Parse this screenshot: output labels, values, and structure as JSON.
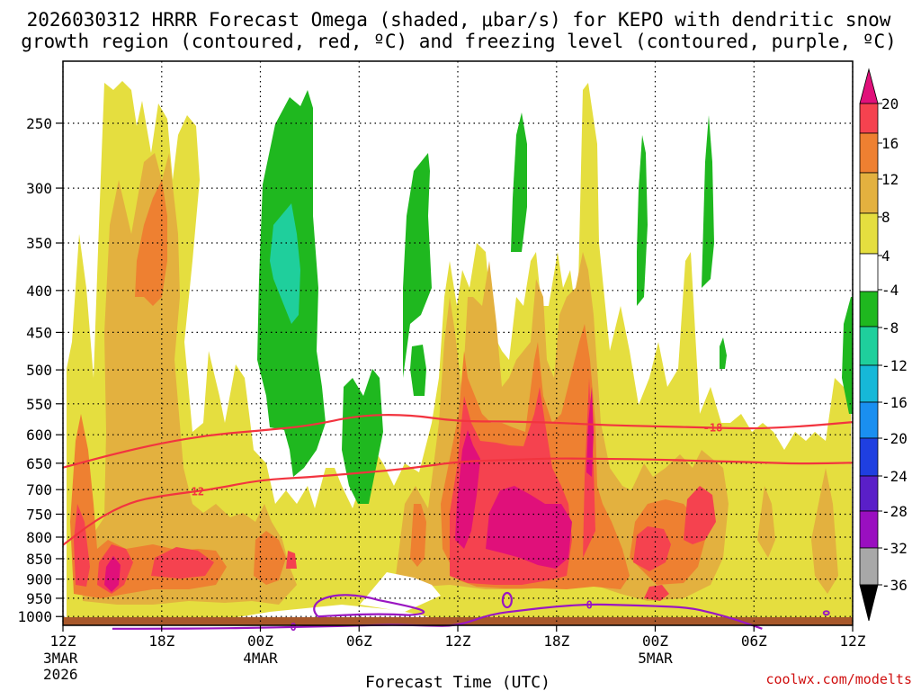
{
  "chart_data": {
    "type": "heatmap",
    "title_line1": "2026030312 HRRR Forecast Omega (shaded, μbar/s) for KEPO with dendritic snow",
    "title_line2": "growth region (contoured, red, ºC) and freezing level (contoured, purple, ºC)",
    "xlabel": "Forecast Time (UTC)",
    "credit": "coolwx.com/modelts",
    "y_ticks": [
      250,
      300,
      350,
      400,
      450,
      500,
      550,
      600,
      650,
      700,
      750,
      800,
      850,
      900,
      950,
      1000
    ],
    "y_top": 210,
    "y_bottom": 1025,
    "x_hours": [
      0,
      6,
      12,
      18,
      24,
      30,
      36,
      42,
      48
    ],
    "x_labels": [
      {
        "hour": 0,
        "time": "12Z",
        "date": "3MAR",
        "year": "2026"
      },
      {
        "hour": 6,
        "time": "18Z",
        "date": "",
        "year": ""
      },
      {
        "hour": 12,
        "time": "00Z",
        "date": "4MAR",
        "year": ""
      },
      {
        "hour": 18,
        "time": "06Z",
        "date": "",
        "year": ""
      },
      {
        "hour": 24,
        "time": "12Z",
        "date": "",
        "year": ""
      },
      {
        "hour": 30,
        "time": "18Z",
        "date": "",
        "year": ""
      },
      {
        "hour": 36,
        "time": "00Z",
        "date": "5MAR",
        "year": ""
      },
      {
        "hour": 42,
        "time": "06Z",
        "date": "",
        "year": ""
      },
      {
        "hour": 48,
        "time": "12Z",
        "date": "",
        "year": ""
      }
    ],
    "colorbar": {
      "labels": [
        "20",
        "16",
        "12",
        "8",
        "4",
        "-4",
        "-8",
        "-12",
        "-16",
        "-20",
        "-24",
        "-28",
        "-32",
        "-36"
      ],
      "colors": {
        "gt20": "#e0107a",
        "16_20": "#f5424f",
        "12_16": "#ee8031",
        "8_12": "#e3b13f",
        "4_8": "#e5de3f",
        "m4_4": "#ffffff",
        "m8_m4": "#1fb81f",
        "m12_m8": "#1fcf9c",
        "m16_m12": "#16b8d8",
        "m20_m16": "#1a8ff0",
        "m24_m20": "#1f3fe0",
        "m28_m24": "#5a1fc8",
        "m32_m28": "#9a0fc0",
        "m36_m32": "#a8a8a8",
        "lt36": "#000000"
      }
    },
    "contours": {
      "dgz_color": "#f2343f",
      "freezing_color": "#9a16c2",
      "lines": [
        {
          "name": "isotherm-minus-18",
          "label": "-18",
          "label_hour": 39.5,
          "points": [
            [
              0,
              658
            ],
            [
              3,
              634
            ],
            [
              6,
              614
            ],
            [
              9,
              600
            ],
            [
              12,
              593
            ],
            [
              15,
              585
            ],
            [
              18,
              568
            ],
            [
              21,
              567
            ],
            [
              24,
              578
            ],
            [
              27,
              578
            ],
            [
              30,
              580
            ],
            [
              33,
              584
            ],
            [
              36,
              586
            ],
            [
              39,
              588
            ],
            [
              42,
              590
            ],
            [
              45,
              586
            ],
            [
              48,
              579
            ]
          ]
        },
        {
          "name": "isotherm-minus-12",
          "label": "-12",
          "label_hour": 8,
          "points": [
            [
              0,
              818
            ],
            [
              2,
              762
            ],
            [
              4,
              726
            ],
            [
              6,
              712
            ],
            [
              9,
              700
            ],
            [
              12,
              681
            ],
            [
              15,
              676
            ],
            [
              18,
              668
            ],
            [
              21,
              660
            ],
            [
              24,
              647
            ],
            [
              27,
              644
            ],
            [
              30,
              641
            ],
            [
              33,
              642
            ],
            [
              36,
              643
            ],
            [
              39,
              646
            ],
            [
              42,
              648
            ],
            [
              45,
              651
            ],
            [
              48,
              649
            ]
          ]
        },
        {
          "name": "freezing-level-0",
          "label": "0",
          "label_hour": 14,
          "points": [
            [
              3,
              1035
            ],
            [
              6,
              1035
            ],
            [
              9,
              1034
            ],
            [
              12,
              1032
            ],
            [
              14,
              1030
            ],
            [
              16,
              1028
            ],
            [
              18,
              1026
            ],
            [
              20,
              1023
            ],
            [
              22,
              1026
            ],
            [
              24,
              1027
            ],
            [
              26,
              993
            ],
            [
              28,
              982
            ],
            [
              30,
              972
            ],
            [
              32,
              966
            ],
            [
              34,
              968
            ],
            [
              36,
              971
            ],
            [
              38,
              975
            ],
            [
              39.5,
              990
            ],
            [
              41,
              1010
            ],
            [
              42.5,
              1035
            ]
          ]
        }
      ],
      "extra_zero_labels": [
        {
          "hour": 32,
          "pressure": 968
        }
      ]
    }
  }
}
